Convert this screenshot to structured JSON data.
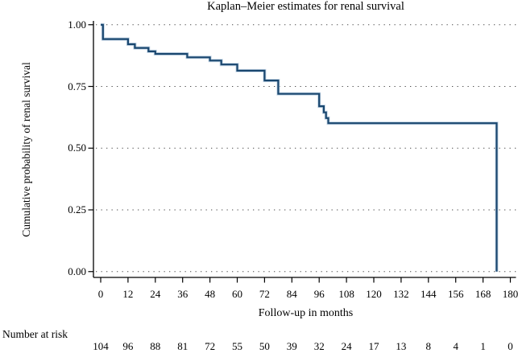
{
  "title": "Kaplan–Meier estimates for renal survival",
  "y_axis": {
    "label": "Cumulative probability of renal survival",
    "tick_labels": [
      "1.00",
      "0.75",
      "0.50",
      "0.25",
      "0.00"
    ]
  },
  "x_axis": {
    "label": "Follow-up in months",
    "tick_labels": [
      "0",
      "12",
      "24",
      "36",
      "48",
      "60",
      "72",
      "84",
      "96",
      "108",
      "120",
      "132",
      "144",
      "156",
      "168",
      "180"
    ]
  },
  "number_at_risk": {
    "label": "Number at risk",
    "values": [
      104,
      96,
      88,
      81,
      72,
      55,
      50,
      39,
      32,
      24,
      17,
      13,
      8,
      4,
      1,
      0
    ]
  },
  "chart_data": {
    "type": "line",
    "subtype": "kaplan-meier-step",
    "title": "Kaplan–Meier estimates for renal survival",
    "xlabel": "Follow-up in months",
    "ylabel": "Cumulative probability of renal survival",
    "xlim": [
      0,
      180
    ],
    "ylim": [
      0,
      1
    ],
    "x_ticks": [
      0,
      12,
      24,
      36,
      48,
      60,
      72,
      84,
      96,
      108,
      120,
      132,
      144,
      156,
      168,
      180
    ],
    "y_ticks": [
      1.0,
      0.75,
      0.5,
      0.25,
      0.0
    ],
    "grid": "horizontal dotted lines at each y tick, extending to right edge",
    "legend": "none",
    "line_color": "#1a476f",
    "line_halo_color": "#c3d5e6",
    "axis_color": "#000000",
    "grid_color": "#4a4a4a",
    "series": [
      {
        "name": "renal survival",
        "steps": [
          [
            0,
            1.0
          ],
          [
            1,
            0.942
          ],
          [
            12,
            0.921
          ],
          [
            15,
            0.906
          ],
          [
            21,
            0.892
          ],
          [
            24,
            0.882
          ],
          [
            38,
            0.868
          ],
          [
            48,
            0.855
          ],
          [
            53,
            0.839
          ],
          [
            60,
            0.814
          ],
          [
            72,
            0.774
          ],
          [
            78,
            0.72
          ],
          [
            96,
            0.67
          ],
          [
            98,
            0.645
          ],
          [
            99,
            0.622
          ],
          [
            100,
            0.601
          ],
          [
            174,
            0.0
          ]
        ]
      }
    ],
    "number_at_risk": {
      "label": "Number at risk",
      "times": [
        0,
        12,
        24,
        36,
        48,
        60,
        72,
        84,
        96,
        108,
        120,
        132,
        144,
        156,
        168,
        180
      ],
      "values": [
        104,
        96,
        88,
        81,
        72,
        55,
        50,
        39,
        32,
        24,
        17,
        13,
        8,
        4,
        1,
        0
      ]
    }
  }
}
